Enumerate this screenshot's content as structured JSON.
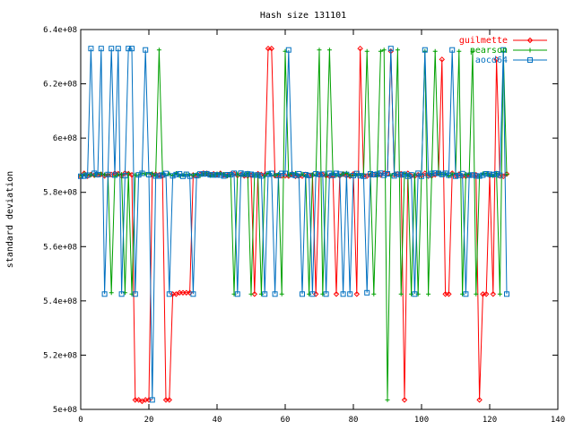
{
  "chart_data": {
    "type": "line",
    "title": "Hash size 131101",
    "xlabel": "",
    "ylabel": "standard deviation",
    "xlim": [
      0,
      140
    ],
    "ylim": [
      500000000,
      640000000
    ],
    "x_ticks": [
      "0",
      "20",
      "40",
      "60",
      "80",
      "100",
      "120",
      "140"
    ],
    "y_ticks": [
      "5e+08",
      "5.2e+08",
      "5.4e+08",
      "5.6e+08",
      "5.8e+08",
      "6e+08",
      "6.2e+08",
      "6.4e+08"
    ],
    "legend_position": "top-right",
    "grid": false,
    "baseline": 586500000,
    "series": [
      {
        "name": "guilmette",
        "color": "#ff0000",
        "marker": "diamond",
        "excursions": [
          [
            16,
            503500000
          ],
          [
            17,
            503500000
          ],
          [
            18,
            503000000
          ],
          [
            19,
            503500000
          ],
          [
            20,
            503500000
          ],
          [
            25,
            503500000
          ],
          [
            26,
            503500000
          ],
          [
            27,
            542500000
          ],
          [
            28,
            542500000
          ],
          [
            29,
            543000000
          ],
          [
            30,
            543000000
          ],
          [
            31,
            543000000
          ],
          [
            32,
            543000000
          ],
          [
            51,
            542500000
          ],
          [
            55,
            633000000
          ],
          [
            56,
            633000000
          ],
          [
            69,
            542500000
          ],
          [
            75,
            542500000
          ],
          [
            81,
            542500000
          ],
          [
            82,
            633000000
          ],
          [
            91,
            632000000
          ],
          [
            95,
            503500000
          ],
          [
            106,
            629000000
          ],
          [
            107,
            542500000
          ],
          [
            108,
            542500000
          ],
          [
            117,
            503500000
          ],
          [
            118,
            542500000
          ],
          [
            119,
            542500000
          ],
          [
            121,
            542500000
          ],
          [
            122,
            629000000
          ]
        ]
      },
      {
        "name": "pearson",
        "color": "#00a000",
        "marker": "plus",
        "excursions": [
          [
            9,
            543000000
          ],
          [
            13,
            543000000
          ],
          [
            15,
            542500000
          ],
          [
            23,
            632500000
          ],
          [
            45,
            542500000
          ],
          [
            50,
            542500000
          ],
          [
            53,
            542500000
          ],
          [
            59,
            542500000
          ],
          [
            60,
            632000000
          ],
          [
            67,
            542500000
          ],
          [
            70,
            632500000
          ],
          [
            71,
            542500000
          ],
          [
            73,
            632500000
          ],
          [
            84,
            632000000
          ],
          [
            86,
            542500000
          ],
          [
            88,
            632000000
          ],
          [
            89,
            632500000
          ],
          [
            90,
            503500000
          ],
          [
            93,
            632500000
          ],
          [
            94,
            542500000
          ],
          [
            97,
            542500000
          ],
          [
            99,
            542500000
          ],
          [
            101,
            632000000
          ],
          [
            102,
            542500000
          ],
          [
            104,
            632000000
          ],
          [
            111,
            632000000
          ],
          [
            112,
            542500000
          ],
          [
            115,
            632000000
          ],
          [
            116,
            542500000
          ],
          [
            123,
            542500000
          ],
          [
            124,
            632000000
          ]
        ]
      },
      {
        "name": "aocd64",
        "color": "#0070c0",
        "marker": "square",
        "excursions": [
          [
            3,
            633000000
          ],
          [
            6,
            633000000
          ],
          [
            7,
            542500000
          ],
          [
            9,
            633000000
          ],
          [
            11,
            633000000
          ],
          [
            12,
            542500000
          ],
          [
            14,
            633000000
          ],
          [
            15,
            633000000
          ],
          [
            16,
            542500000
          ],
          [
            19,
            632500000
          ],
          [
            21,
            503500000
          ],
          [
            26,
            542500000
          ],
          [
            33,
            542500000
          ],
          [
            46,
            542500000
          ],
          [
            54,
            542500000
          ],
          [
            57,
            542500000
          ],
          [
            61,
            632500000
          ],
          [
            65,
            542500000
          ],
          [
            68,
            542500000
          ],
          [
            72,
            542500000
          ],
          [
            77,
            542500000
          ],
          [
            79,
            542500000
          ],
          [
            84,
            543000000
          ],
          [
            91,
            633000000
          ],
          [
            98,
            542500000
          ],
          [
            101,
            632500000
          ],
          [
            109,
            632500000
          ],
          [
            113,
            542500000
          ],
          [
            124,
            632500000
          ],
          [
            125,
            542500000
          ]
        ]
      }
    ]
  }
}
